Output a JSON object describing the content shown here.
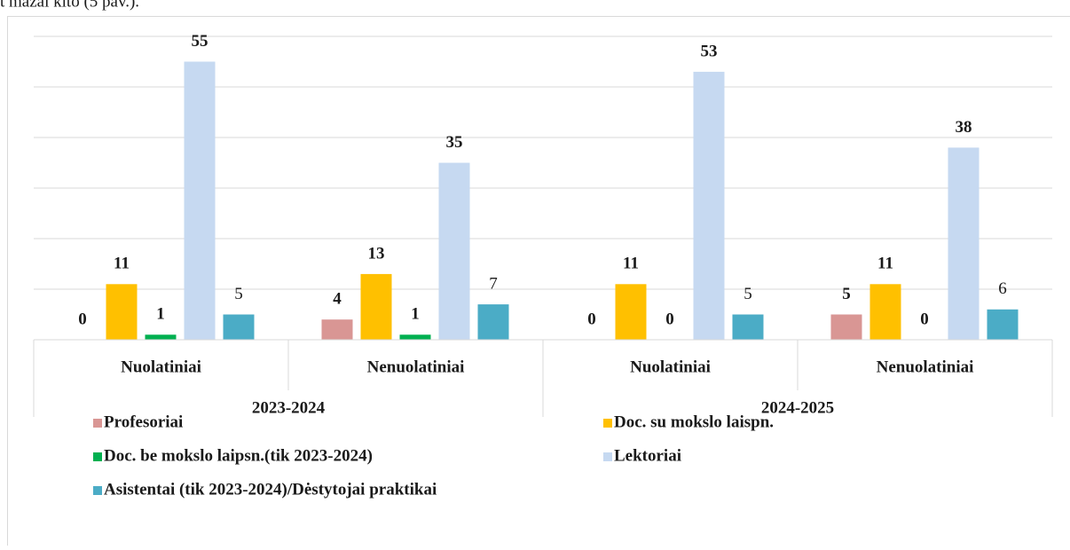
{
  "text_above": "t mažai kito (5 pav.).",
  "chart_data": {
    "type": "bar",
    "categories": [
      "Nuolatiniai",
      "Nenuolatiniai",
      "Nuolatiniai",
      "Nenuolatiniai"
    ],
    "groups": [
      "2023-2024",
      "2024-2025"
    ],
    "ylim": [
      0,
      60
    ],
    "yticks": [
      0,
      10,
      20,
      30,
      40,
      50,
      60
    ],
    "grid": true,
    "series": [
      {
        "name": "Profesoriai",
        "color": "#d99694",
        "values": [
          0,
          4,
          0,
          5
        ],
        "label_bold": true
      },
      {
        "name": "Doc. su mokslo laispn.",
        "color": "#ffc000",
        "values": [
          11,
          13,
          11,
          11
        ],
        "label_bold": true
      },
      {
        "name": "Doc. be mokslo laipsn.(tik 2023-2024)",
        "color": "#00b050",
        "values": [
          1,
          1,
          0,
          0
        ],
        "label_bold": true
      },
      {
        "name": "Lektoriai",
        "color": "#c6d9f1",
        "values": [
          55,
          35,
          53,
          38
        ],
        "label_bold": true
      },
      {
        "name": "Asistentai (tik 2023-2024)/Dėstytojai praktikai",
        "color": "#4bacc6",
        "values": [
          5,
          7,
          5,
          6
        ],
        "label_bold": false
      }
    ]
  }
}
